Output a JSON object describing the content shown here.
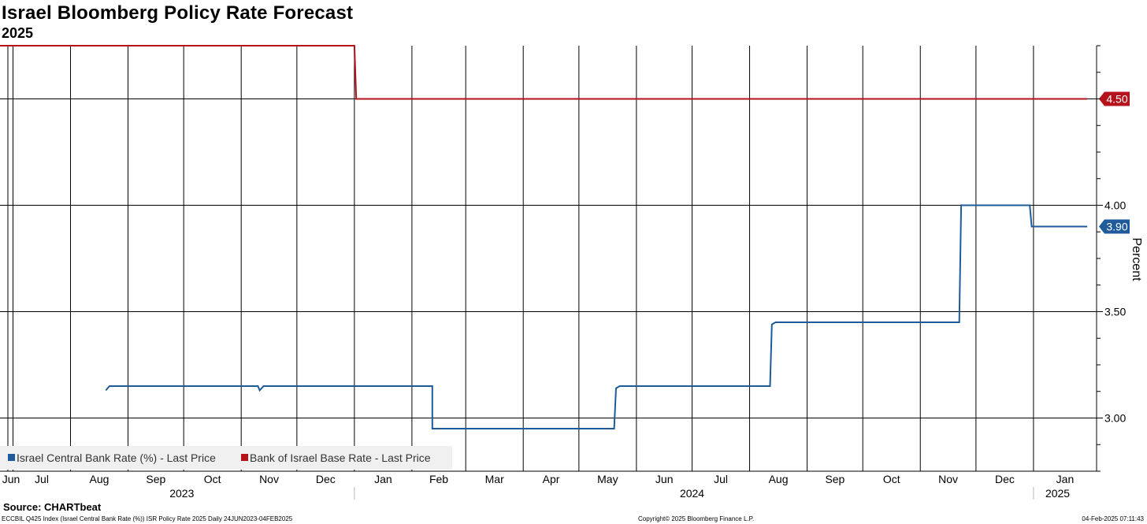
{
  "chart_data": {
    "type": "line",
    "title": "Israel Bloomberg Policy Rate Forecast",
    "subtitle": "2025",
    "ylabel": "Percent",
    "ylim": [
      2.75,
      4.75
    ],
    "yticks": [
      {
        "value": 3.0,
        "label": "3.00"
      },
      {
        "value": 3.5,
        "label": "3.50"
      },
      {
        "value": 4.0,
        "label": "4.00"
      }
    ],
    "xlim": [
      "2023-06-24",
      "2025-02-04"
    ],
    "month_ticks": [
      {
        "date": "2023-06-24",
        "label": "Jun"
      },
      {
        "date": "2023-07-01",
        "label": "Jul"
      },
      {
        "date": "2023-08-01",
        "label": "Aug"
      },
      {
        "date": "2023-09-01",
        "label": "Sep"
      },
      {
        "date": "2023-10-01",
        "label": "Oct"
      },
      {
        "date": "2023-11-01",
        "label": "Nov"
      },
      {
        "date": "2023-12-01",
        "label": "Dec"
      },
      {
        "date": "2024-01-01",
        "label": "Jan"
      },
      {
        "date": "2024-02-01",
        "label": "Feb"
      },
      {
        "date": "2024-03-01",
        "label": "Mar"
      },
      {
        "date": "2024-04-01",
        "label": "Apr"
      },
      {
        "date": "2024-05-01",
        "label": "May"
      },
      {
        "date": "2024-06-01",
        "label": "Jun"
      },
      {
        "date": "2024-07-01",
        "label": "Jul"
      },
      {
        "date": "2024-08-01",
        "label": "Aug"
      },
      {
        "date": "2024-09-01",
        "label": "Sep"
      },
      {
        "date": "2024-10-01",
        "label": "Oct"
      },
      {
        "date": "2024-11-01",
        "label": "Nov"
      },
      {
        "date": "2024-12-01",
        "label": "Dec"
      },
      {
        "date": "2025-01-01",
        "label": "Jan"
      }
    ],
    "year_labels": [
      {
        "label": "2023",
        "center": "2023-09-30"
      },
      {
        "label": "2024",
        "center": "2024-07-01"
      },
      {
        "label": "2025",
        "center": "2025-01-14"
      }
    ],
    "year_separators": [
      "2024-01-01",
      "2025-01-01"
    ],
    "series": [
      {
        "name": "Israel Central Bank Rate (%) - Last Price",
        "color": "#1f5b9a",
        "last_label": "3.90",
        "points": [
          [
            "2023-08-20",
            3.13
          ],
          [
            "2023-08-22",
            3.15
          ],
          [
            "2023-11-10",
            3.15
          ],
          [
            "2023-11-11",
            3.13
          ],
          [
            "2023-11-13",
            3.15
          ],
          [
            "2024-02-12",
            3.15
          ],
          [
            "2024-02-12",
            2.95
          ],
          [
            "2024-05-20",
            2.95
          ],
          [
            "2024-05-21",
            3.14
          ],
          [
            "2024-05-23",
            3.15
          ],
          [
            "2024-08-12",
            3.15
          ],
          [
            "2024-08-13",
            3.44
          ],
          [
            "2024-08-15",
            3.45
          ],
          [
            "2024-11-22",
            3.45
          ],
          [
            "2024-11-23",
            4.0
          ],
          [
            "2024-12-30",
            4.0
          ],
          [
            "2024-12-31",
            3.9
          ],
          [
            "2025-01-30",
            3.9
          ]
        ]
      },
      {
        "name": "Bank of Israel Base Rate - Last Price",
        "color": "#b5121b",
        "last_label": "4.50",
        "points": [
          [
            "2023-06-24",
            4.75
          ],
          [
            "2024-01-01",
            4.75
          ],
          [
            "2024-01-02",
            4.5
          ],
          [
            "2025-01-30",
            4.5
          ]
        ]
      }
    ],
    "legend_position": "bottom-left"
  },
  "source": "Source: CHARTbeat",
  "footer": {
    "left": "ECCBIL Q425 Index (Israel Central Bank Rate (%)) ISR Policy Rate 2025  Daily 24JUN2023-04FEB2025",
    "center": "Copyright© 2025 Bloomberg Finance L.P.",
    "right": "04-Feb-2025 07:11:43"
  }
}
